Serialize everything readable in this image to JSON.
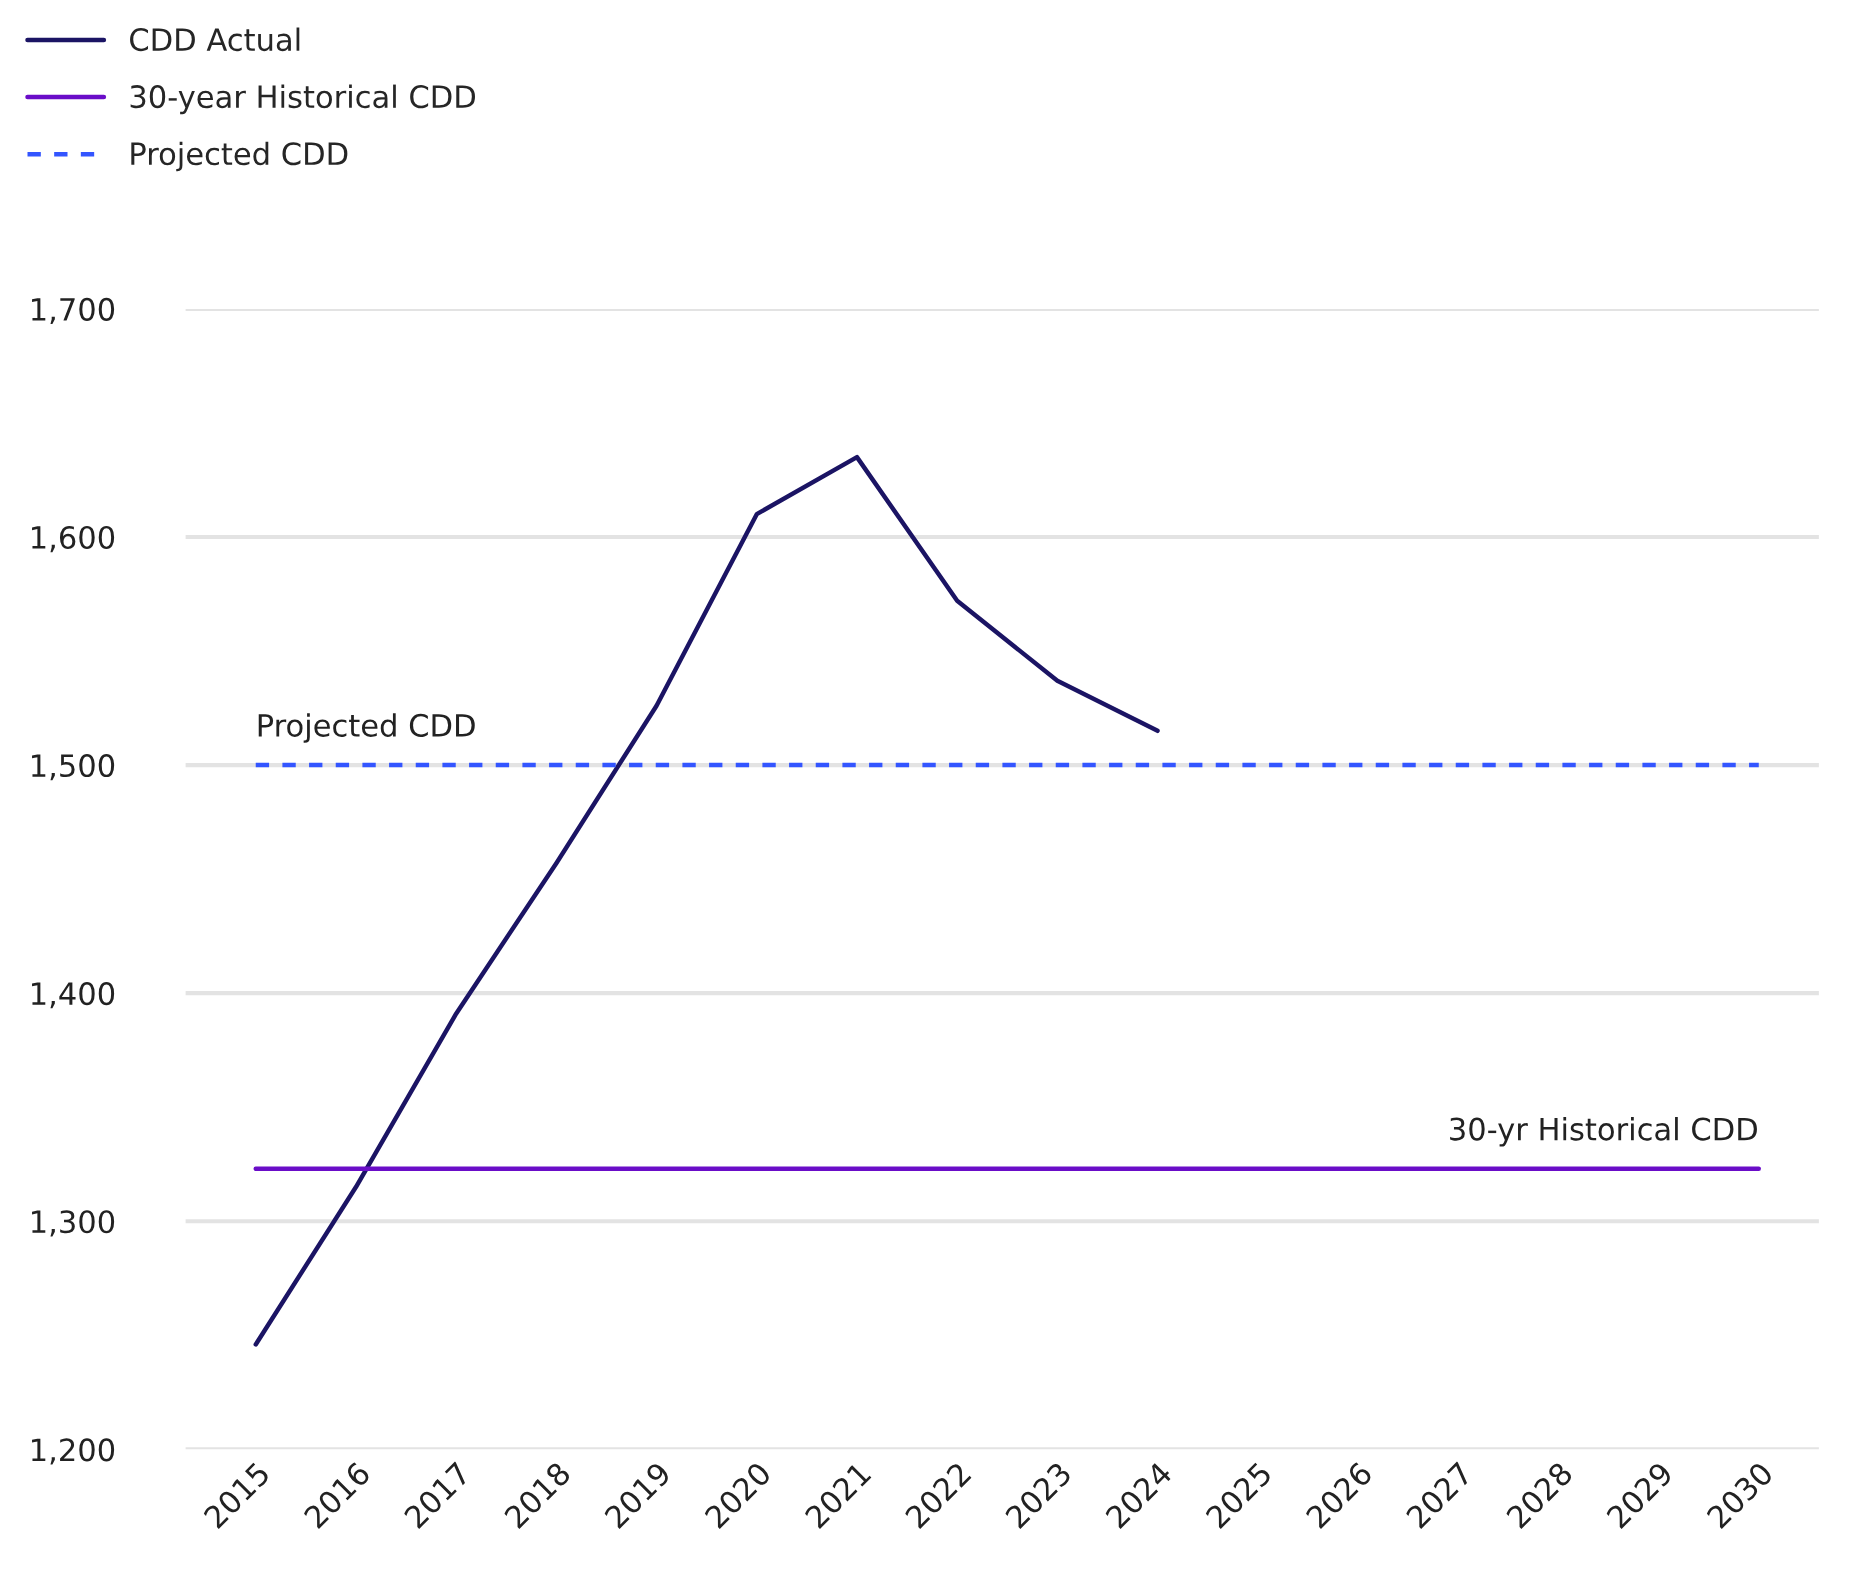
{
  "chart_data": {
    "type": "line",
    "categories": [
      "2015",
      "2016",
      "2017",
      "2018",
      "2019",
      "2020",
      "2021",
      "2022",
      "2023",
      "2024",
      "2025",
      "2026",
      "2027",
      "2028",
      "2029",
      "2030"
    ],
    "series": [
      {
        "name": "CDD Actual",
        "color": "#1b1464",
        "values": [
          1246,
          1315,
          1391,
          1457,
          1526,
          1610,
          1635,
          1572,
          1537,
          1515,
          null,
          null,
          null,
          null,
          null,
          null
        ]
      },
      {
        "name": "30-year Historical CDD",
        "color": "#6a0dc8",
        "values": [
          1323,
          1323,
          1323,
          1323,
          1323,
          1323,
          1323,
          1323,
          1323,
          1323,
          1323,
          1323,
          1323,
          1323,
          1323,
          1323
        ]
      },
      {
        "name": "Projected CDD",
        "color": "#3355ff",
        "line_style": "dashed",
        "values": [
          1500,
          1500,
          1500,
          1500,
          1500,
          1500,
          1500,
          1500,
          1500,
          1500,
          1500,
          1500,
          1500,
          1500,
          1500,
          1500
        ]
      }
    ],
    "annotations": [
      {
        "text": "Projected CDD",
        "x": "2015",
        "y": 1500
      },
      {
        "text": "30-yr Historical CDD",
        "x": "2030",
        "y": 1323
      }
    ],
    "ylim": [
      1200,
      1700
    ],
    "yticks": [
      {
        "value": 1200,
        "label": "1,200"
      },
      {
        "value": 1300,
        "label": "1,300"
      },
      {
        "value": 1400,
        "label": "1,400"
      },
      {
        "value": 1500,
        "label": "1,500"
      },
      {
        "value": 1600,
        "label": "1,600"
      },
      {
        "value": 1700,
        "label": "1,700"
      }
    ],
    "grid": "y",
    "legend": "top left",
    "marker": "none",
    "line_style": "solid"
  }
}
